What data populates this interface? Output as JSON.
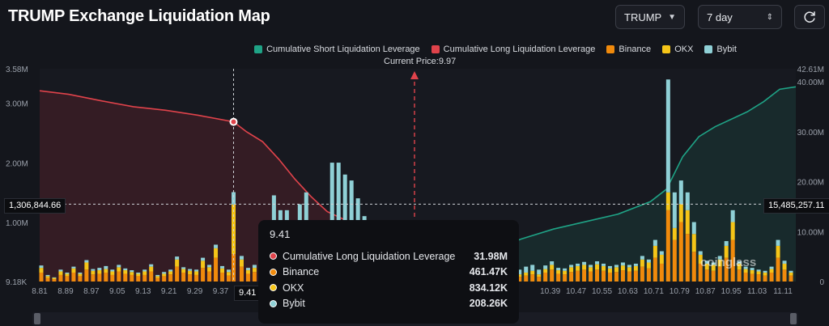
{
  "header": {
    "title": "TRUMP Exchange Liquidation Map",
    "symbol_select": "TRUMP",
    "range_select": "7 day"
  },
  "legend": [
    {
      "label": "Cumulative Short Liquidation Leverage",
      "color": "#1fa386"
    },
    {
      "label": "Cumulative Long Liquidation Leverage",
      "color": "#e0434b"
    },
    {
      "label": "Binance",
      "color": "#f08a0c"
    },
    {
      "label": "OKX",
      "color": "#f5c518"
    },
    {
      "label": "Bybit",
      "color": "#8fd0d6"
    }
  ],
  "current_price_label": "Current Price:9.97",
  "cursor": {
    "left_value": "1,306,844.66",
    "right_value": "15,485,257.11",
    "x_label": "9.41"
  },
  "tooltip": {
    "title": "9.41",
    "rows": [
      {
        "label": "Cumulative Long Liquidation Leverage",
        "value": "31.98M",
        "color": "#e0434b"
      },
      {
        "label": "Binance",
        "value": "461.47K",
        "color": "#f08a0c"
      },
      {
        "label": "OKX",
        "value": "834.12K",
        "color": "#f5c518"
      },
      {
        "label": "Bybit",
        "value": "208.26K",
        "color": "#8fd0d6"
      }
    ]
  },
  "watermark": "coinglass",
  "chart_data": {
    "type": "bar",
    "x_range": [
      8.81,
      11.15
    ],
    "x_ticks": [
      "8.81",
      "8.89",
      "8.97",
      "9.05",
      "9.13",
      "9.21",
      "9.29",
      "9.37",
      "9.41",
      "10.39",
      "10.47",
      "10.55",
      "10.63",
      "10.71",
      "10.79",
      "10.87",
      "10.95",
      "11.03",
      "11.11"
    ],
    "left_axis": {
      "ticks": [
        "9.18K",
        "1.00M",
        "2.00M",
        "3.00M",
        "3.58M"
      ],
      "values": [
        9180,
        1000000,
        2000000,
        3000000,
        3580000
      ],
      "ylim": [
        9180,
        3580000
      ]
    },
    "right_axis": {
      "ticks": [
        "0",
        "10.00M",
        "20.00M",
        "30.00M",
        "40.00M",
        "42.61M"
      ],
      "values": [
        0,
        10000000,
        20000000,
        30000000,
        40000000,
        42610000
      ],
      "ylim": [
        0,
        42610000
      ]
    },
    "current_price": 9.97,
    "bars": [
      [
        8.815,
        150000,
        80000,
        40000
      ],
      [
        8.835,
        60000,
        30000,
        20000
      ],
      [
        8.855,
        40000,
        20000,
        10000
      ],
      [
        8.875,
        110000,
        60000,
        30000
      ],
      [
        8.895,
        90000,
        40000,
        20000
      ],
      [
        8.915,
        150000,
        70000,
        30000
      ],
      [
        8.935,
        90000,
        40000,
        20000
      ],
      [
        8.955,
        200000,
        120000,
        40000
      ],
      [
        8.975,
        120000,
        60000,
        30000
      ],
      [
        8.995,
        130000,
        60000,
        40000
      ],
      [
        9.015,
        150000,
        60000,
        50000
      ],
      [
        9.035,
        110000,
        60000,
        30000
      ],
      [
        9.055,
        170000,
        70000,
        40000
      ],
      [
        9.075,
        130000,
        60000,
        30000
      ],
      [
        9.095,
        110000,
        50000,
        30000
      ],
      [
        9.115,
        90000,
        40000,
        20000
      ],
      [
        9.135,
        110000,
        60000,
        30000
      ],
      [
        9.155,
        170000,
        80000,
        40000
      ],
      [
        9.175,
        60000,
        30000,
        20000
      ],
      [
        9.195,
        90000,
        40000,
        30000
      ],
      [
        9.215,
        120000,
        50000,
        30000
      ],
      [
        9.235,
        250000,
        120000,
        50000
      ],
      [
        9.255,
        150000,
        60000,
        30000
      ],
      [
        9.275,
        120000,
        60000,
        30000
      ],
      [
        9.295,
        110000,
        60000,
        30000
      ],
      [
        9.315,
        230000,
        120000,
        50000
      ],
      [
        9.335,
        170000,
        70000,
        40000
      ],
      [
        9.355,
        400000,
        160000,
        60000
      ],
      [
        9.375,
        150000,
        70000,
        40000
      ],
      [
        9.395,
        100000,
        60000,
        40000
      ],
      [
        9.41,
        461470,
        834120,
        208260
      ],
      [
        9.435,
        250000,
        120000,
        60000
      ],
      [
        9.455,
        130000,
        60000,
        40000
      ],
      [
        9.475,
        160000,
        70000,
        50000
      ],
      [
        9.495,
        300000,
        130000,
        60000
      ],
      [
        9.515,
        500000,
        250000,
        100000
      ],
      [
        9.535,
        500000,
        400000,
        550000
      ],
      [
        9.555,
        500000,
        300000,
        400000
      ],
      [
        9.575,
        600000,
        400000,
        200000
      ],
      [
        9.595,
        500000,
        300000,
        100000
      ],
      [
        9.615,
        450000,
        350000,
        500000
      ],
      [
        9.635,
        600000,
        400000,
        500000
      ],
      [
        9.655,
        400000,
        250000,
        300000
      ],
      [
        9.675,
        300000,
        200000,
        300000
      ],
      [
        9.695,
        250000,
        200000,
        200000
      ],
      [
        9.715,
        500000,
        300000,
        1200000
      ],
      [
        9.735,
        500000,
        300000,
        1200000
      ],
      [
        9.755,
        500000,
        400000,
        900000
      ],
      [
        9.775,
        500000,
        400000,
        800000
      ],
      [
        9.795,
        400000,
        300000,
        700000
      ],
      [
        9.815,
        400000,
        200000,
        500000
      ],
      [
        9.835,
        300000,
        200000,
        300000
      ],
      [
        9.855,
        250000,
        150000,
        200000
      ],
      [
        10.295,
        80000,
        40000,
        80000
      ],
      [
        10.315,
        100000,
        50000,
        100000
      ],
      [
        10.335,
        120000,
        60000,
        100000
      ],
      [
        10.355,
        80000,
        40000,
        80000
      ],
      [
        10.375,
        150000,
        60000,
        60000
      ],
      [
        10.395,
        200000,
        80000,
        60000
      ],
      [
        10.415,
        130000,
        60000,
        40000
      ],
      [
        10.435,
        120000,
        60000,
        40000
      ],
      [
        10.455,
        160000,
        80000,
        40000
      ],
      [
        10.475,
        180000,
        80000,
        40000
      ],
      [
        10.495,
        200000,
        80000,
        50000
      ],
      [
        10.515,
        170000,
        70000,
        40000
      ],
      [
        10.535,
        200000,
        90000,
        50000
      ],
      [
        10.555,
        180000,
        80000,
        40000
      ],
      [
        10.575,
        150000,
        70000,
        40000
      ],
      [
        10.595,
        160000,
        80000,
        40000
      ],
      [
        10.615,
        190000,
        80000,
        50000
      ],
      [
        10.635,
        170000,
        70000,
        40000
      ],
      [
        10.655,
        180000,
        80000,
        40000
      ],
      [
        10.675,
        250000,
        120000,
        60000
      ],
      [
        10.695,
        220000,
        100000,
        50000
      ],
      [
        10.715,
        400000,
        200000,
        100000
      ],
      [
        10.735,
        300000,
        150000,
        60000
      ],
      [
        10.755,
        1200000,
        300000,
        1900000
      ],
      [
        10.775,
        700000,
        200000,
        600000
      ],
      [
        10.795,
        1000000,
        300000,
        400000
      ],
      [
        10.815,
        800000,
        400000,
        300000
      ],
      [
        10.835,
        500000,
        300000,
        200000
      ],
      [
        10.855,
        300000,
        150000,
        60000
      ],
      [
        10.875,
        200000,
        100000,
        50000
      ],
      [
        10.895,
        180000,
        100000,
        40000
      ],
      [
        10.915,
        250000,
        120000,
        60000
      ],
      [
        10.935,
        400000,
        200000,
        80000
      ],
      [
        10.955,
        700000,
        300000,
        200000
      ],
      [
        10.975,
        200000,
        100000,
        40000
      ],
      [
        10.995,
        150000,
        60000,
        40000
      ],
      [
        11.015,
        130000,
        60000,
        40000
      ],
      [
        11.035,
        120000,
        50000,
        30000
      ],
      [
        11.055,
        100000,
        50000,
        30000
      ],
      [
        11.075,
        150000,
        60000,
        40000
      ],
      [
        11.095,
        400000,
        200000,
        100000
      ],
      [
        11.115,
        200000,
        100000,
        50000
      ],
      [
        11.135,
        100000,
        50000,
        30000
      ]
    ],
    "long_cumulative": [
      [
        8.81,
        38200000
      ],
      [
        8.9,
        37500000
      ],
      [
        9.0,
        36200000
      ],
      [
        9.1,
        35000000
      ],
      [
        9.2,
        34300000
      ],
      [
        9.3,
        33300000
      ],
      [
        9.41,
        31980000
      ],
      [
        9.45,
        30000000
      ],
      [
        9.5,
        28000000
      ],
      [
        9.55,
        24500000
      ],
      [
        9.6,
        20500000
      ],
      [
        9.65,
        17000000
      ],
      [
        9.7,
        14000000
      ],
      [
        9.75,
        12500000
      ],
      [
        9.8,
        9000000
      ],
      [
        9.85,
        4000000
      ],
      [
        9.9,
        1000000
      ],
      [
        9.97,
        0
      ]
    ],
    "short_cumulative": [
      [
        9.97,
        0
      ],
      [
        10.1,
        3000000
      ],
      [
        10.2,
        6000000
      ],
      [
        10.3,
        8500000
      ],
      [
        10.4,
        10500000
      ],
      [
        10.5,
        12000000
      ],
      [
        10.6,
        13500000
      ],
      [
        10.7,
        16000000
      ],
      [
        10.75,
        18500000
      ],
      [
        10.8,
        25000000
      ],
      [
        10.85,
        29000000
      ],
      [
        10.9,
        31000000
      ],
      [
        11.0,
        34000000
      ],
      [
        11.05,
        36000000
      ],
      [
        11.1,
        38500000
      ],
      [
        11.15,
        39000000
      ]
    ]
  }
}
